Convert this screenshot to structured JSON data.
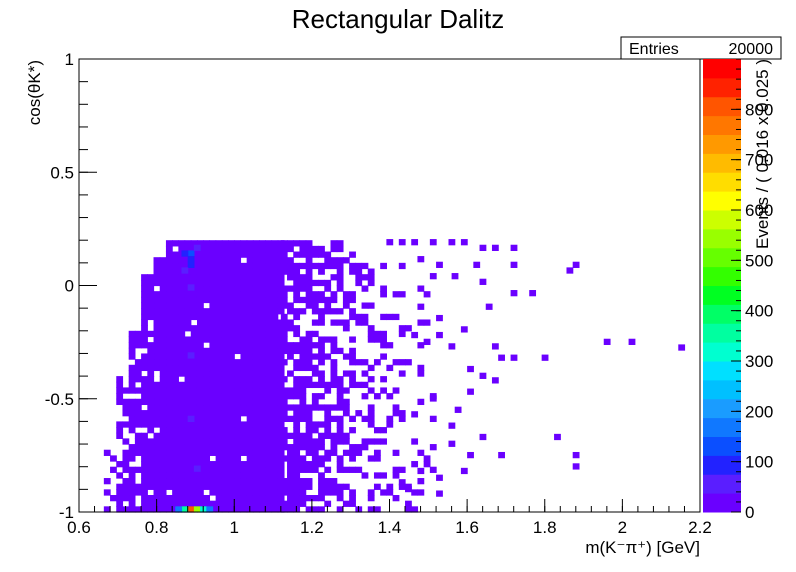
{
  "title": "Rectangular Dalitz",
  "stats_box": {
    "label": "Entries",
    "value": "20000"
  },
  "chart_data": {
    "type": "heatmap",
    "title": "Rectangular Dalitz",
    "xlabel": "m(K⁻π⁺) [GeV]",
    "ylabel": "cos(θK*)",
    "zlabel": "Events / ( 0.016 x 0.025 )",
    "xlim": [
      0.6,
      2.2
    ],
    "ylim": [
      -1,
      1
    ],
    "zlim": [
      0,
      900
    ],
    "x_ticks": [
      "0.6",
      "0.8",
      "1",
      "1.2",
      "1.4",
      "1.6",
      "1.8",
      "2",
      "2.2"
    ],
    "y_ticks": [
      "-1",
      "-0.5",
      "0",
      "0.5",
      "1"
    ],
    "z_ticks": [
      "0",
      "100",
      "200",
      "300",
      "400",
      "500",
      "600",
      "700",
      "800"
    ],
    "grid": false,
    "palette": [
      "#6a00ff",
      "#5a1eff",
      "#2222ff",
      "#0b4fff",
      "#1078ff",
      "#1a9cff",
      "#00c0ff",
      "#00e0ff",
      "#00ffd0",
      "#00ffa0",
      "#00ff66",
      "#00ff22",
      "#33ff00",
      "#66ff00",
      "#99ff00",
      "#ccff00",
      "#ffff00",
      "#ffdd00",
      "#ffbb00",
      "#ff9900",
      "#ff7700",
      "#ff5500",
      "#ff2200",
      "#ff0000"
    ],
    "bins": [
      [
        0.88,
        -1.0,
        800
      ],
      [
        0.896,
        -1.0,
        550
      ],
      [
        0.864,
        -1.0,
        350
      ],
      [
        0.912,
        -1.0,
        300
      ],
      [
        0.848,
        -1.0,
        180
      ],
      [
        0.928,
        -1.0,
        150
      ],
      [
        0.88,
        0.13,
        120
      ],
      [
        0.88,
        0.105,
        100
      ],
      [
        0.864,
        0.13,
        80
      ],
      [
        0.896,
        0.155,
        70
      ],
      [
        0.88,
        0.08,
        80
      ],
      [
        0.864,
        0.055,
        60
      ],
      [
        0.88,
        -0.02,
        60
      ],
      [
        0.88,
        -0.32,
        50
      ],
      [
        0.88,
        -0.6,
        50
      ],
      [
        0.896,
        -0.82,
        45
      ]
    ],
    "sparse_bins": [
      [
        1.392,
        0.18,
        1
      ],
      [
        1.424,
        0.18,
        1
      ],
      [
        1.456,
        0.18,
        1
      ],
      [
        1.504,
        0.18,
        1
      ],
      [
        1.552,
        0.18,
        1
      ],
      [
        1.584,
        0.18,
        1
      ],
      [
        1.632,
        0.155,
        1
      ],
      [
        1.664,
        0.155,
        1
      ],
      [
        1.712,
        0.155,
        1
      ],
      [
        1.472,
        0.105,
        1
      ],
      [
        1.52,
        0.08,
        1
      ],
      [
        1.616,
        0.08,
        1
      ],
      [
        1.712,
        0.08,
        1
      ],
      [
        1.872,
        0.08,
        1
      ],
      [
        1.856,
        0.055,
        1
      ],
      [
        1.504,
        0.03,
        1
      ],
      [
        1.56,
        0.03,
        1
      ],
      [
        1.632,
        0.005,
        1
      ],
      [
        1.712,
        -0.045,
        1
      ],
      [
        1.76,
        -0.045,
        1
      ],
      [
        1.648,
        -0.105,
        1
      ],
      [
        1.472,
        -0.105,
        1
      ],
      [
        1.52,
        -0.155,
        1
      ],
      [
        1.584,
        -0.205,
        1
      ],
      [
        1.44,
        -0.2,
        1
      ],
      [
        1.456,
        -0.23,
        1
      ],
      [
        1.488,
        -0.26,
        1
      ],
      [
        1.52,
        -0.23,
        1
      ],
      [
        1.552,
        -0.28,
        1
      ],
      [
        1.664,
        -0.28,
        1
      ],
      [
        1.952,
        -0.26,
        1
      ],
      [
        2.016,
        -0.26,
        1
      ],
      [
        2.144,
        -0.285,
        1
      ],
      [
        1.68,
        -0.33,
        1
      ],
      [
        1.712,
        -0.33,
        1
      ],
      [
        1.792,
        -0.33,
        1
      ],
      [
        1.6,
        -0.38,
        1
      ],
      [
        1.632,
        -0.41,
        1
      ],
      [
        1.664,
        -0.43,
        1
      ],
      [
        1.6,
        -0.48,
        1
      ],
      [
        1.504,
        -0.51,
        1
      ],
      [
        1.568,
        -0.56,
        1
      ],
      [
        1.456,
        -0.58,
        1
      ],
      [
        1.552,
        -0.63,
        1
      ],
      [
        1.632,
        -0.68,
        1
      ],
      [
        1.552,
        -0.71,
        1
      ],
      [
        1.6,
        -0.76,
        1
      ],
      [
        1.68,
        -0.76,
        1
      ],
      [
        1.824,
        -0.68,
        1
      ],
      [
        1.872,
        -0.76,
        1
      ],
      [
        1.872,
        -0.81,
        1
      ],
      [
        1.584,
        -0.83,
        1
      ],
      [
        1.52,
        -0.86,
        1
      ],
      [
        1.424,
        -0.88,
        1
      ],
      [
        1.472,
        -0.83,
        1
      ],
      [
        1.44,
        -0.91,
        1
      ],
      [
        1.52,
        -0.93,
        1
      ]
    ],
    "regions": [
      {
        "x": [
          0.824,
          1.12
        ],
        "y_top": 0.2,
        "density": 0.98
      },
      {
        "x": [
          0.792,
          0.824
        ],
        "y_top": 0.12,
        "density": 0.95
      },
      {
        "x": [
          0.76,
          0.792
        ],
        "y_top": 0.04,
        "density": 0.9
      },
      {
        "x": [
          0.728,
          0.76
        ],
        "y_top": -0.2,
        "density": 0.8
      },
      {
        "x": [
          0.696,
          0.728
        ],
        "y_top": -0.4,
        "density": 0.6
      },
      {
        "x": [
          0.664,
          0.696
        ],
        "y_top": -0.7,
        "density": 0.35
      },
      {
        "x": [
          1.12,
          1.2
        ],
        "y_top": 0.2,
        "density": 0.75
      },
      {
        "x": [
          1.2,
          1.28
        ],
        "y_top": 0.18,
        "density": 0.55
      },
      {
        "x": [
          1.28,
          1.36
        ],
        "y_top": 0.13,
        "density": 0.4
      },
      {
        "x": [
          1.36,
          1.44
        ],
        "y_top": 0.1,
        "density": 0.22
      },
      {
        "x": [
          1.44,
          1.52
        ],
        "y_top": 0.05,
        "density": 0.1
      }
    ]
  }
}
